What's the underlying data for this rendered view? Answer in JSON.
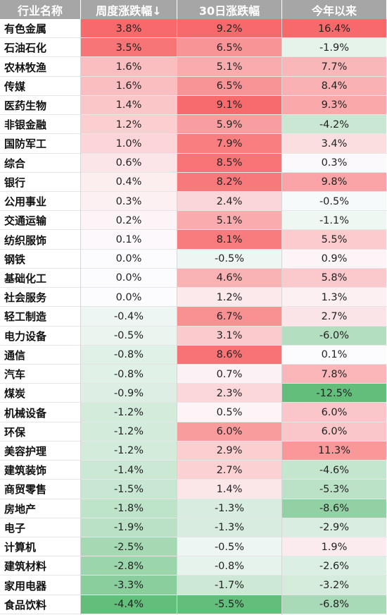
{
  "chart_data": {
    "type": "heatmap",
    "columns": [
      "行业名称",
      "周度涨跌幅↓",
      "30日涨跌幅",
      "今年以来"
    ],
    "rows": [
      {
        "name": "有色金属",
        "week": 3.8,
        "d30": 9.2,
        "ytd": 16.4
      },
      {
        "name": "石油石化",
        "week": 3.5,
        "d30": 6.5,
        "ytd": -1.9
      },
      {
        "name": "农林牧渔",
        "week": 1.6,
        "d30": 5.1,
        "ytd": 7.7
      },
      {
        "name": "传媒",
        "week": 1.6,
        "d30": 6.5,
        "ytd": 8.4
      },
      {
        "name": "医药生物",
        "week": 1.4,
        "d30": 9.1,
        "ytd": 9.3
      },
      {
        "name": "非银金融",
        "week": 1.2,
        "d30": 5.9,
        "ytd": -4.2
      },
      {
        "name": "国防军工",
        "week": 1.0,
        "d30": 7.9,
        "ytd": 3.4
      },
      {
        "name": "综合",
        "week": 0.6,
        "d30": 8.5,
        "ytd": 0.3
      },
      {
        "name": "银行",
        "week": 0.4,
        "d30": 8.2,
        "ytd": 9.8
      },
      {
        "name": "公用事业",
        "week": 0.3,
        "d30": 2.4,
        "ytd": -0.5
      },
      {
        "name": "交通运输",
        "week": 0.2,
        "d30": 5.1,
        "ytd": -1.1
      },
      {
        "name": "纺织服饰",
        "week": 0.1,
        "d30": 8.1,
        "ytd": 5.5
      },
      {
        "name": "钢铁",
        "week": 0.0,
        "d30": -0.5,
        "ytd": 0.9
      },
      {
        "name": "基础化工",
        "week": 0.0,
        "d30": 4.6,
        "ytd": 5.8
      },
      {
        "name": "社会服务",
        "week": 0.0,
        "d30": 1.2,
        "ytd": 1.3
      },
      {
        "name": "轻工制造",
        "week": -0.4,
        "d30": 6.7,
        "ytd": 2.7
      },
      {
        "name": "电力设备",
        "week": -0.5,
        "d30": 3.1,
        "ytd": -6.0
      },
      {
        "name": "通信",
        "week": -0.8,
        "d30": 8.6,
        "ytd": 0.1
      },
      {
        "name": "汽车",
        "week": -0.8,
        "d30": 0.7,
        "ytd": 7.8
      },
      {
        "name": "煤炭",
        "week": -0.9,
        "d30": 2.3,
        "ytd": -12.5
      },
      {
        "name": "机械设备",
        "week": -1.2,
        "d30": 0.5,
        "ytd": 6.0
      },
      {
        "name": "环保",
        "week": -1.2,
        "d30": 6.0,
        "ytd": 6.0
      },
      {
        "name": "美容护理",
        "week": -1.2,
        "d30": 2.9,
        "ytd": 11.3
      },
      {
        "name": "建筑装饰",
        "week": -1.4,
        "d30": 2.7,
        "ytd": -4.6
      },
      {
        "name": "商贸零售",
        "week": -1.5,
        "d30": 1.4,
        "ytd": -5.3
      },
      {
        "name": "房地产",
        "week": -1.8,
        "d30": -1.3,
        "ytd": -8.6
      },
      {
        "name": "电子",
        "week": -1.9,
        "d30": -1.3,
        "ytd": -2.9
      },
      {
        "name": "计算机",
        "week": -2.5,
        "d30": -0.5,
        "ytd": 1.9
      },
      {
        "name": "建筑材料",
        "week": -2.8,
        "d30": -0.8,
        "ytd": -2.6
      },
      {
        "name": "家用电器",
        "week": -3.3,
        "d30": -1.7,
        "ytd": -3.2
      },
      {
        "name": "食品饮料",
        "week": -4.4,
        "d30": -5.5,
        "ytd": -6.8
      }
    ],
    "colors": {
      "positive_max": "#f8696b",
      "negative_max": "#63be7b",
      "neutral": "#fcfcff",
      "header_bg": "#a6a6a6",
      "header_text": "#ffffff"
    }
  }
}
